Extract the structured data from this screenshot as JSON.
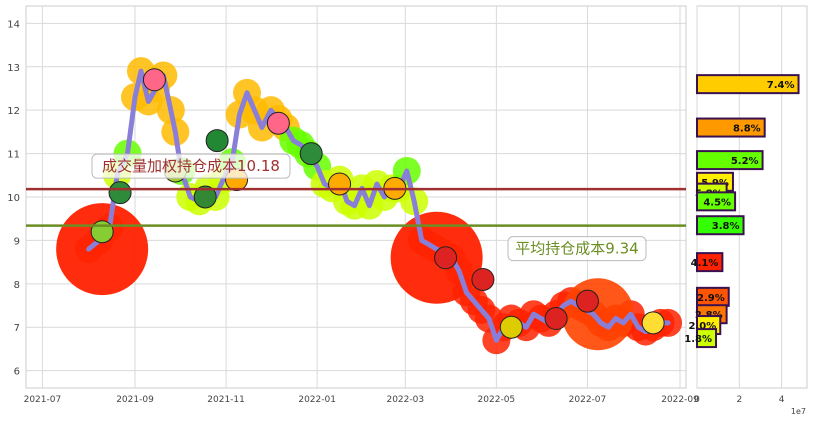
{
  "chart_data": [
    {
      "type": "line",
      "x_ticks": [
        "2021-07",
        "2021-09",
        "2021-11",
        "2022-01",
        "2022-03",
        "2022-05",
        "2022-07",
        "2022-09"
      ],
      "y_ticks": [
        "6",
        "7",
        "8",
        "9",
        "10",
        "11",
        "12",
        "13",
        "14"
      ],
      "ylim": [
        5.6,
        14.4
      ],
      "x_range": [
        "2021-06-20",
        "2022-09-05"
      ],
      "grid": true,
      "series": [
        {
          "x": [
            "2021-08-01",
            "2021-08-08",
            "2021-08-15",
            "2021-08-20",
            "2021-08-27",
            "2021-09-01",
            "2021-09-05",
            "2021-09-10",
            "2021-09-15",
            "2021-09-20",
            "2021-09-25",
            "2021-09-28",
            "2021-10-02",
            "2021-10-08",
            "2021-10-14",
            "2021-10-20",
            "2021-10-25",
            "2021-10-30",
            "2021-11-05",
            "2021-11-10",
            "2021-11-15",
            "2021-11-20",
            "2021-11-25",
            "2021-12-01",
            "2021-12-06",
            "2021-12-11",
            "2021-12-16",
            "2021-12-21",
            "2021-12-26",
            "2022-01-01",
            "2022-01-06",
            "2022-01-11",
            "2022-01-16",
            "2022-01-21",
            "2022-01-26",
            "2022-01-31",
            "2022-02-05",
            "2022-02-10",
            "2022-02-15",
            "2022-02-20",
            "2022-02-25",
            "2022-03-02",
            "2022-03-07",
            "2022-03-12",
            "2022-03-17",
            "2022-03-22",
            "2022-03-27",
            "2022-04-01",
            "2022-04-06",
            "2022-04-11",
            "2022-04-16",
            "2022-04-21",
            "2022-04-26",
            "2022-05-01",
            "2022-05-06",
            "2022-05-11",
            "2022-05-16",
            "2022-05-21",
            "2022-05-26",
            "2022-05-31",
            "2022-06-05",
            "2022-06-10",
            "2022-06-15",
            "2022-06-20",
            "2022-06-25",
            "2022-06-30",
            "2022-07-05",
            "2022-07-10",
            "2022-07-15",
            "2022-07-20",
            "2022-07-25",
            "2022-07-30",
            "2022-08-04",
            "2022-08-09",
            "2022-08-14",
            "2022-08-19",
            "2022-08-24"
          ],
          "y": [
            8.8,
            9.0,
            9.3,
            10.5,
            11.0,
            12.3,
            12.9,
            12.2,
            12.5,
            12.8,
            12.0,
            11.5,
            10.6,
            10.0,
            9.9,
            10.2,
            10.0,
            10.4,
            10.8,
            11.9,
            12.4,
            12.0,
            11.6,
            12.0,
            11.8,
            11.6,
            11.3,
            11.2,
            11.0,
            10.7,
            10.3,
            10.2,
            10.4,
            9.9,
            9.8,
            10.2,
            9.8,
            10.3,
            10.0,
            10.2,
            10.2,
            10.6,
            9.9,
            9.0,
            8.9,
            8.8,
            8.7,
            8.6,
            8.3,
            7.8,
            7.6,
            7.4,
            7.2,
            6.7,
            7.0,
            7.2,
            7.1,
            7.0,
            7.3,
            7.2,
            7.1,
            7.3,
            7.5,
            7.6,
            7.5,
            7.4,
            7.3,
            7.1,
            7.0,
            7.2,
            7.1,
            7.3,
            7.0,
            6.9,
            7.0,
            7.1,
            7.1
          ]
        }
      ],
      "hlines": [
        {
          "label": "成交量加权持仓成本10.18",
          "value": 10.18,
          "color": "#a03030"
        },
        {
          "label": "平均持仓成本9.34",
          "value": 9.34,
          "color": "#6b8e23"
        }
      ]
    },
    {
      "type": "bar",
      "orientation": "horizontal",
      "x_ticks": [
        "0",
        "2",
        "4"
      ],
      "x_exponent": "1e7",
      "xlim": [
        0,
        5.2
      ],
      "ylim": [
        5.6,
        14.4
      ],
      "bars": [
        {
          "price": 12.6,
          "volume": 4.8,
          "label": "7.4%",
          "color": "#ffcc00"
        },
        {
          "price": 11.6,
          "volume": 3.2,
          "label": "8.8%",
          "color": "#ff9900"
        },
        {
          "price": 10.85,
          "volume": 3.1,
          "label": "5.2%",
          "color": "#66ff00"
        },
        {
          "price": 10.35,
          "volume": 1.7,
          "label": "5.9%",
          "color": "#ffee00"
        },
        {
          "price": 10.1,
          "volume": 1.4,
          "label": "5.8%",
          "color": "#ccff00"
        },
        {
          "price": 9.9,
          "volume": 1.8,
          "label": "4.5%",
          "color": "#66ff00"
        },
        {
          "price": 9.35,
          "volume": 2.2,
          "label": "3.8%",
          "color": "#33ff00"
        },
        {
          "price": 8.5,
          "volume": 1.2,
          "label": "4.1%",
          "color": "#ff2200"
        },
        {
          "price": 7.7,
          "volume": 1.5,
          "label": "2.9%",
          "color": "#ff5500"
        },
        {
          "price": 7.3,
          "volume": 1.4,
          "label": "2.8%",
          "color": "#ff7700"
        },
        {
          "price": 7.05,
          "volume": 1.1,
          "label": "2.0%",
          "color": "#ffee00"
        },
        {
          "price": 6.75,
          "volume": 0.9,
          "label": "1.8%",
          "color": "#ccff00"
        }
      ]
    }
  ]
}
